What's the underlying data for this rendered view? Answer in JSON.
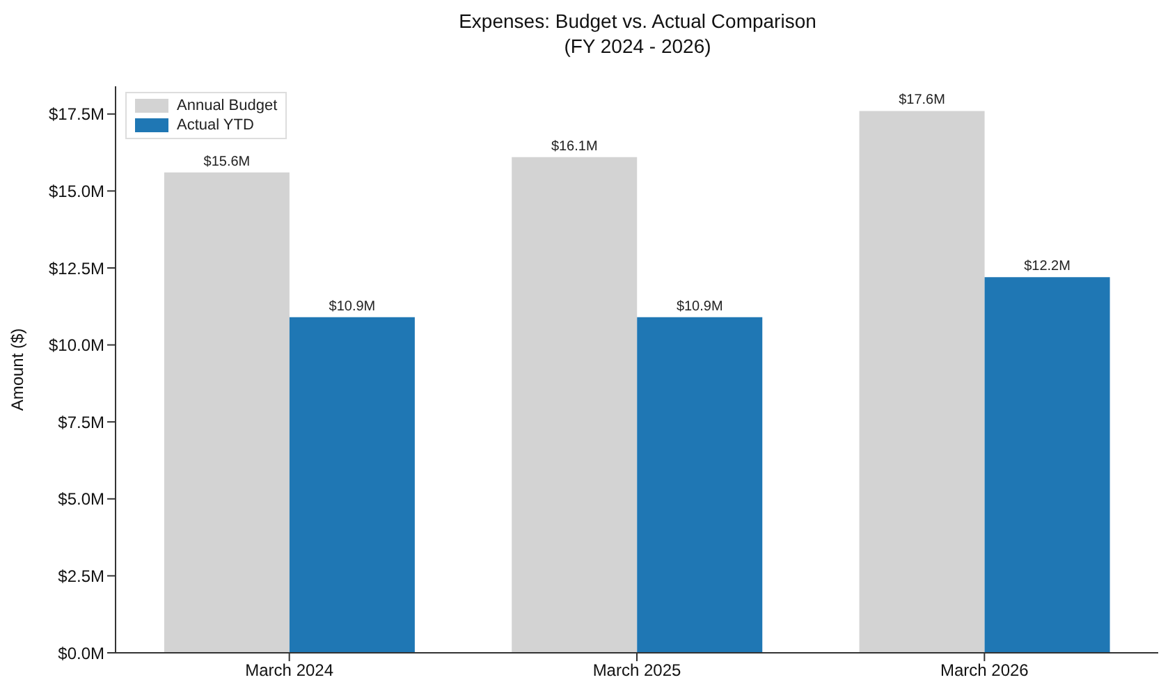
{
  "chart_data": {
    "type": "bar",
    "title": "Expenses: Budget vs. Actual Comparison\n(FY 2024 - 2026)",
    "ylabel": "Amount ($)",
    "categories": [
      "March 2024",
      "March 2025",
      "March 2026"
    ],
    "series": [
      {
        "name": "Annual Budget",
        "color": "#d3d3d3",
        "values": [
          15.6,
          16.1,
          17.6
        ],
        "value_labels": [
          "$15.6M",
          "$16.1M",
          "$17.6M"
        ]
      },
      {
        "name": "Actual YTD",
        "color": "#1f77b4",
        "values": [
          10.9,
          10.9,
          12.2
        ],
        "value_labels": [
          "$10.9M",
          "$10.9M",
          "$12.2M"
        ]
      }
    ],
    "ylim": [
      0,
      18.4
    ],
    "yticks": [
      {
        "value": 0,
        "label": "$0.0M"
      },
      {
        "value": 2.5,
        "label": "$2.5M"
      },
      {
        "value": 5,
        "label": "$5.0M"
      },
      {
        "value": 7.5,
        "label": "$7.5M"
      },
      {
        "value": 10,
        "label": "$10.0M"
      },
      {
        "value": 12.5,
        "label": "$12.5M"
      },
      {
        "value": 15,
        "label": "$15.0M"
      },
      {
        "value": 17.5,
        "label": "$17.5M"
      }
    ],
    "grid": false,
    "legend": "top left"
  }
}
